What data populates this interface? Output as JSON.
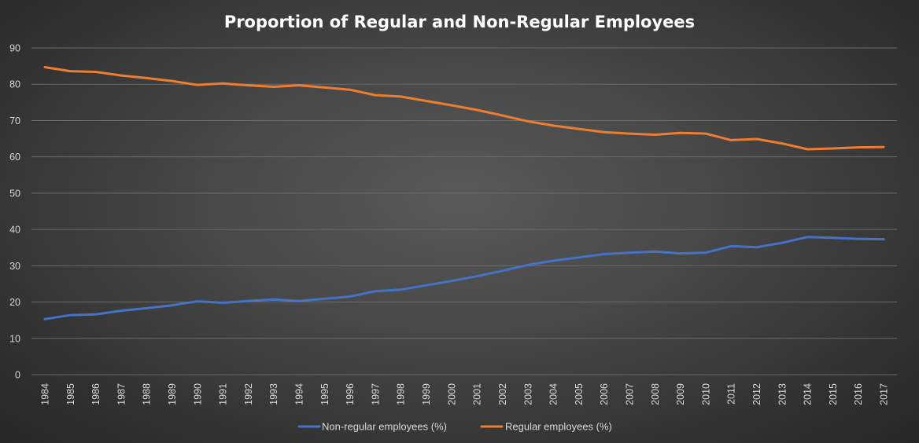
{
  "chart_data": {
    "type": "line",
    "title": "Proportion of Regular and Non-Regular Employees",
    "xlabel": "",
    "ylabel": "",
    "ylim": [
      0,
      90
    ],
    "yticks": [
      0,
      10,
      20,
      30,
      40,
      50,
      60,
      70,
      80,
      90
    ],
    "grid": true,
    "legend_position": "bottom",
    "categories": [
      "1984",
      "1985",
      "1986",
      "1987",
      "1988",
      "1989",
      "1990",
      "1991",
      "1992",
      "1993",
      "1994",
      "1995",
      "1996",
      "1997",
      "1998",
      "1999",
      "2000",
      "2001",
      "2002",
      "2003",
      "2004",
      "2005",
      "2006",
      "2007",
      "2008",
      "2009",
      "2010",
      "2011",
      "2012",
      "2013",
      "2014",
      "2015",
      "2016",
      "2017"
    ],
    "series": [
      {
        "name": "Non-regular employees (%)",
        "color": "#4472c4",
        "values": [
          15.3,
          16.4,
          16.6,
          17.6,
          18.3,
          19.1,
          20.2,
          19.8,
          20.3,
          20.7,
          20.3,
          20.9,
          21.5,
          23.0,
          23.4,
          24.6,
          25.8,
          27.1,
          28.6,
          30.2,
          31.4,
          32.3,
          33.2,
          33.6,
          33.9,
          33.4,
          33.6,
          35.4,
          35.1,
          36.3,
          37.9,
          37.7,
          37.4,
          37.3
        ]
      },
      {
        "name": "Regular employees (%)",
        "color": "#ed7d31",
        "values": [
          84.7,
          83.6,
          83.4,
          82.4,
          81.7,
          80.9,
          79.8,
          80.2,
          79.7,
          79.3,
          79.7,
          79.1,
          78.5,
          77.0,
          76.6,
          75.4,
          74.2,
          72.9,
          71.4,
          69.8,
          68.6,
          67.7,
          66.8,
          66.4,
          66.1,
          66.6,
          66.4,
          64.6,
          64.9,
          63.7,
          62.1,
          62.3,
          62.6,
          62.7
        ]
      }
    ]
  }
}
